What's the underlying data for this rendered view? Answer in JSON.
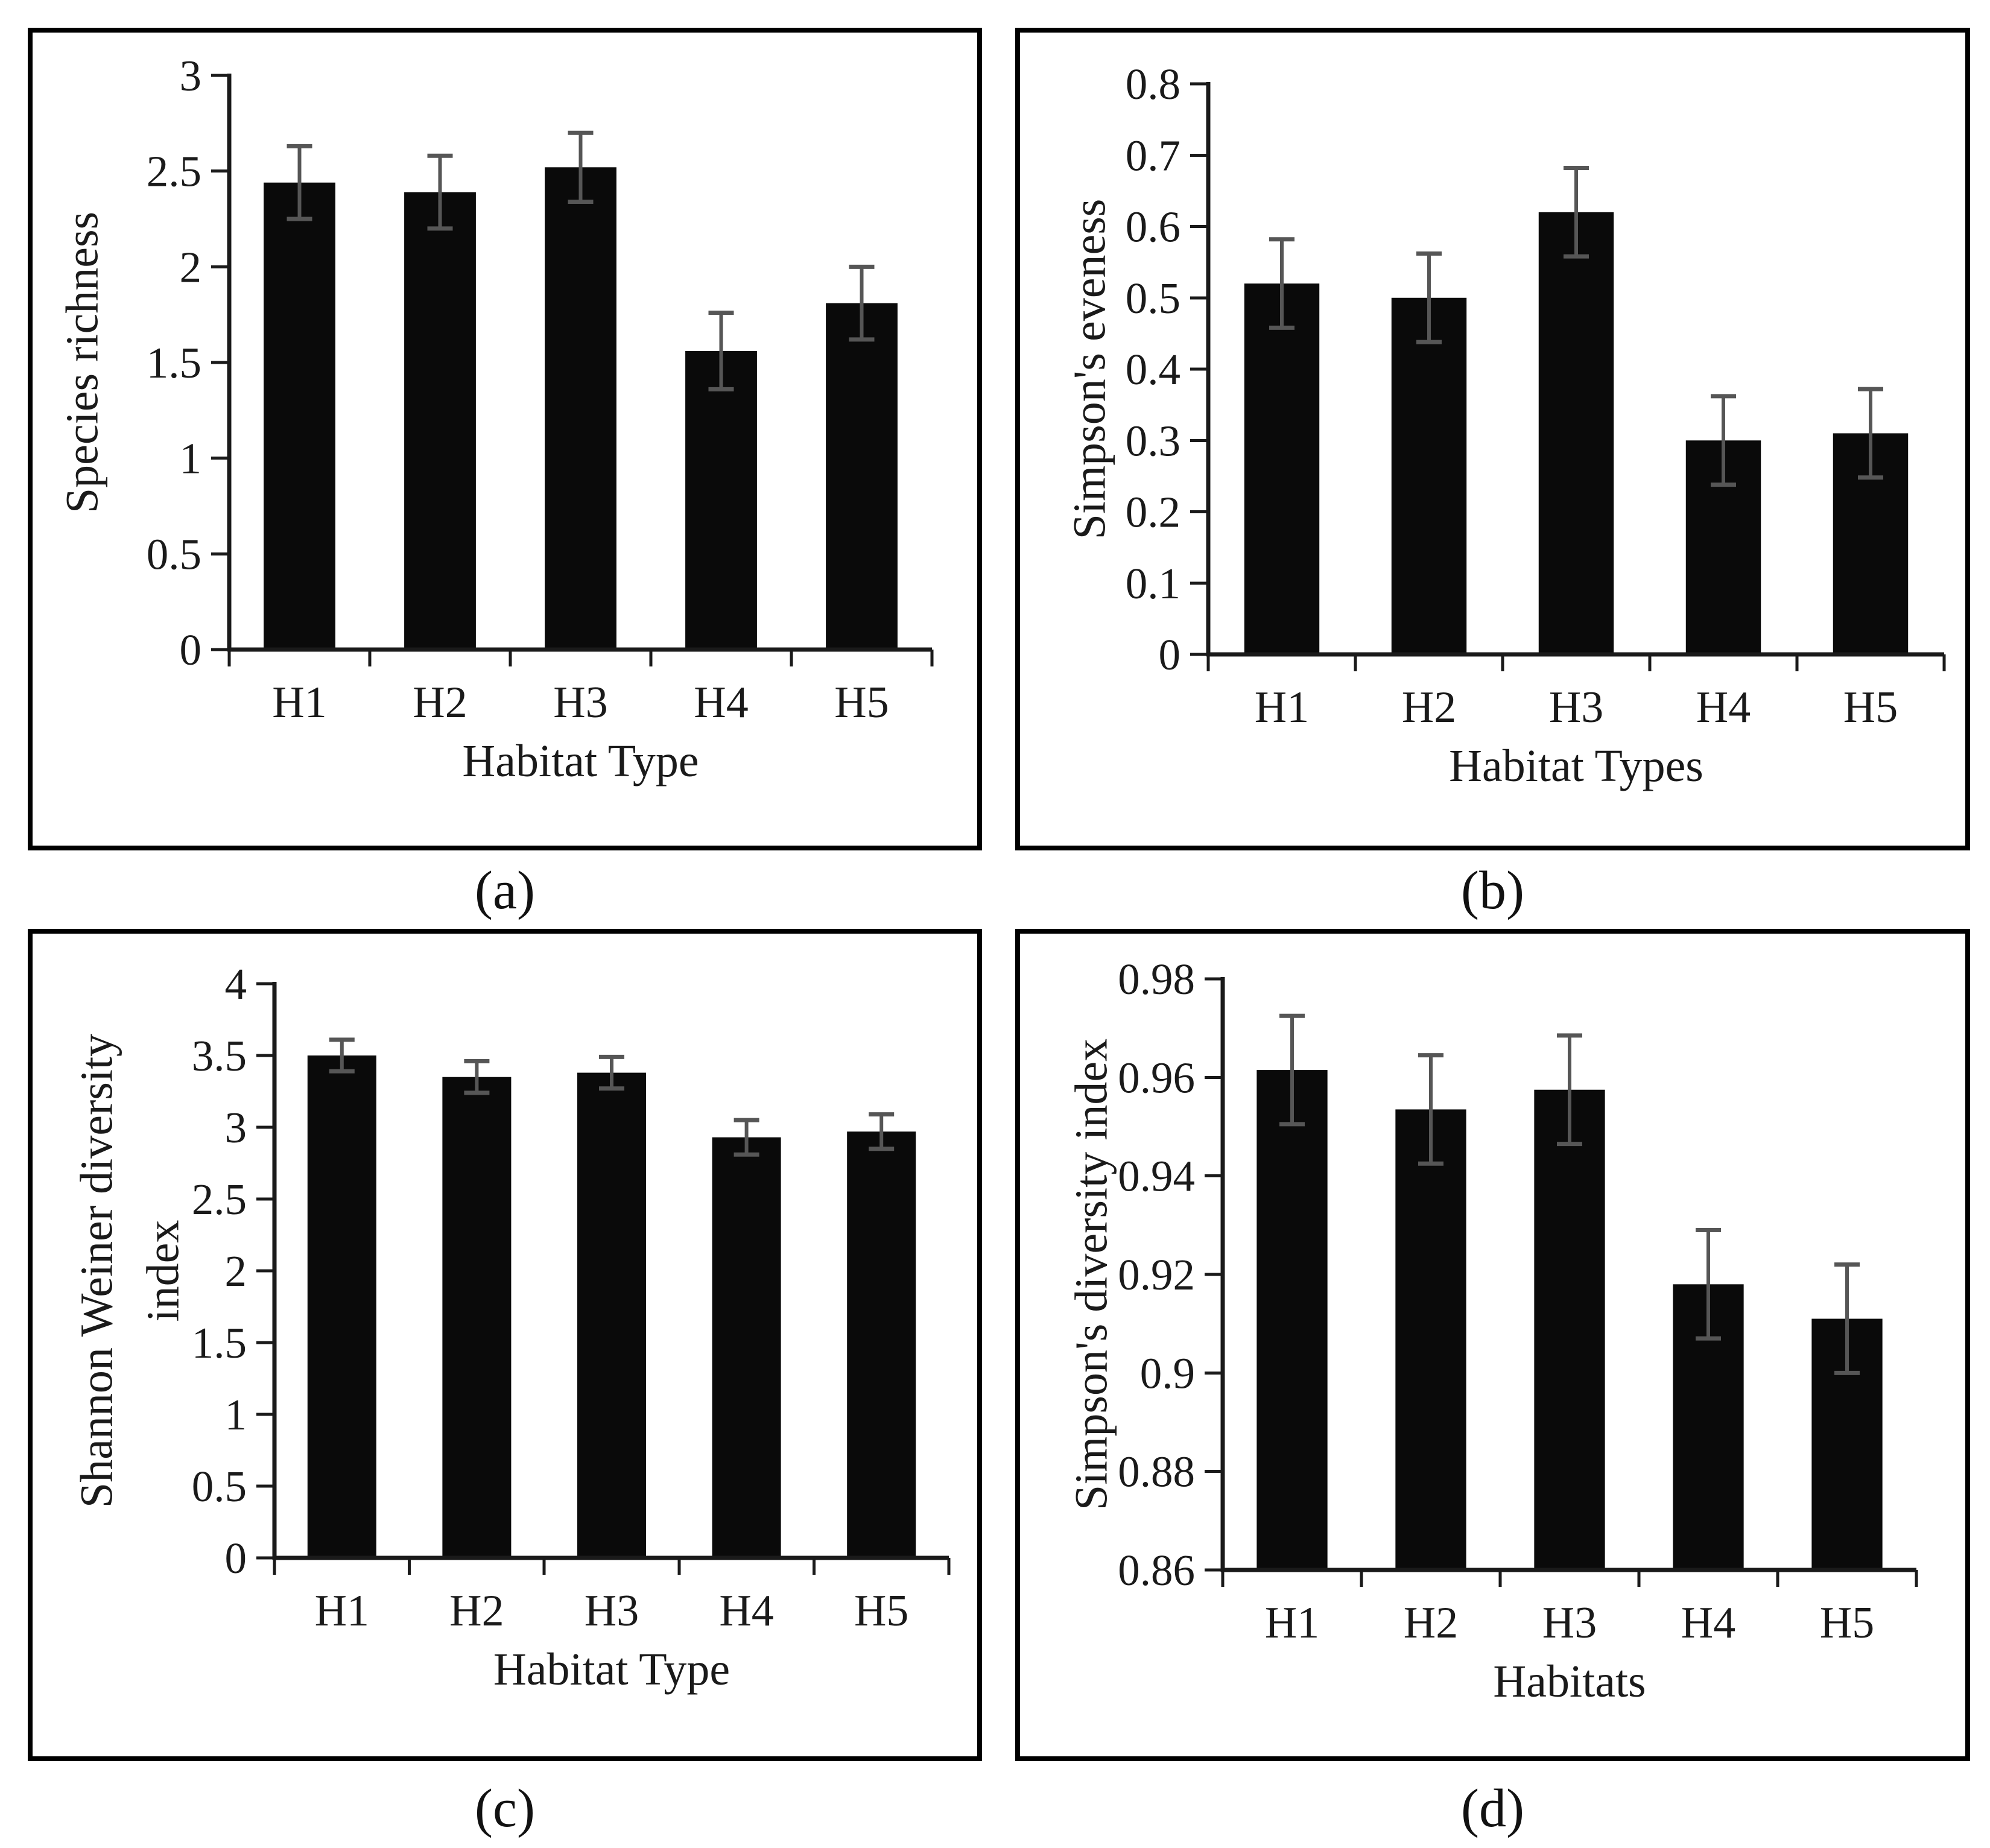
{
  "figure": {
    "background": "#ffffff",
    "panel_count": 4
  },
  "colors": {
    "bar": "#0a0a0a",
    "error_bar": "#565656",
    "axis": "#1a1a1a",
    "frame": "#000000",
    "text": "#1a1a1a"
  },
  "chart_data": [
    {
      "id": "a",
      "type": "bar",
      "caption": "(a)",
      "xlabel": "Habitat Type",
      "ylabel": "Species richness",
      "ylabel_lines": [
        "Species richness"
      ],
      "categories": [
        "H1",
        "H2",
        "H3",
        "H4",
        "H5"
      ],
      "values": [
        2.44,
        2.39,
        2.52,
        1.56,
        1.81
      ],
      "errors": [
        0.19,
        0.19,
        0.18,
        0.2,
        0.19
      ],
      "ylim": [
        0,
        3
      ],
      "ytick_step": 0.5,
      "ytick_labels": [
        "0",
        "0.5",
        "1",
        "1.5",
        "2",
        "2.5",
        "3"
      ],
      "grid": false,
      "legend": "none"
    },
    {
      "id": "b",
      "type": "bar",
      "caption": "(b)",
      "xlabel": "Habitat Types",
      "ylabel": "Simpson's eveness",
      "ylabel_lines": [
        "Simpson's eveness"
      ],
      "categories": [
        "H1",
        "H2",
        "H3",
        "H4",
        "H5"
      ],
      "values": [
        0.52,
        0.5,
        0.62,
        0.3,
        0.31
      ],
      "errors": [
        0.062,
        0.062,
        0.062,
        0.062,
        0.062
      ],
      "ylim": [
        0,
        0.8
      ],
      "ytick_step": 0.1,
      "ytick_labels": [
        "0",
        "0.1",
        "0.2",
        "0.3",
        "0.4",
        "0.5",
        "0.6",
        "0.7",
        "0.8"
      ],
      "grid": false,
      "legend": "none"
    },
    {
      "id": "c",
      "type": "bar",
      "caption": "(c)",
      "xlabel": "Habitat Type",
      "ylabel": "Shannon Weiner diversity index",
      "ylabel_lines": [
        "Shannon Weiner diversity",
        "index"
      ],
      "categories": [
        "H1",
        "H2",
        "H3",
        "H4",
        "H5"
      ],
      "values": [
        3.5,
        3.35,
        3.38,
        2.93,
        2.97
      ],
      "errors": [
        0.11,
        0.11,
        0.11,
        0.12,
        0.12
      ],
      "ylim": [
        0,
        4
      ],
      "ytick_step": 0.5,
      "ytick_labels": [
        "0",
        "0.5",
        "1",
        "1.5",
        "2",
        "2.5",
        "3",
        "3.5",
        "4"
      ],
      "grid": false,
      "legend": "none"
    },
    {
      "id": "d",
      "type": "bar",
      "caption": "(d)",
      "xlabel": "Habitats",
      "ylabel": "Simpson's diversity index",
      "ylabel_lines": [
        "Simpson's diversity index"
      ],
      "categories": [
        "H1",
        "H2",
        "H3",
        "H4",
        "H5"
      ],
      "values": [
        0.9615,
        0.9535,
        0.9575,
        0.918,
        0.911
      ],
      "errors": [
        0.011,
        0.011,
        0.011,
        0.011,
        0.011
      ],
      "ylim": [
        0.86,
        0.98
      ],
      "ytick_step": 0.02,
      "ytick_labels": [
        "0.86",
        "0.88",
        "0.9",
        "0.92",
        "0.94",
        "0.96",
        "0.98"
      ],
      "grid": false,
      "legend": "none"
    }
  ]
}
